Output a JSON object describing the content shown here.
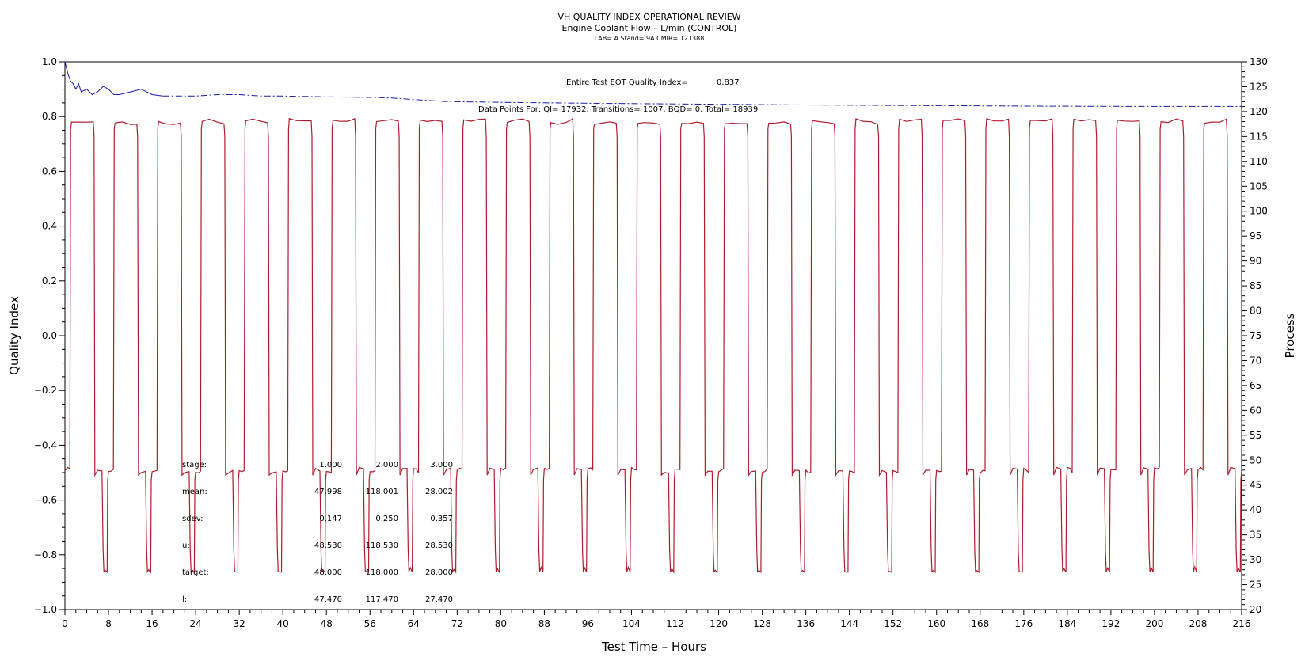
{
  "chart_data": {
    "type": "line",
    "title": "VH QUALITY INDEX OPERATIONAL REVIEW",
    "subtitle": "Engine Coolant Flow – L/min (CONTROL)",
    "subsubtitle": "LAB= A Stand= 9A CMIR= 121388",
    "xlabel": "Test Time – Hours",
    "ylabel": "Quality Index",
    "y2label": "Process",
    "xlim": [
      0,
      216
    ],
    "ylim": [
      -1.0,
      1.0
    ],
    "y2lim": [
      20,
      130
    ],
    "x_ticks": [
      0,
      8,
      16,
      24,
      32,
      40,
      48,
      56,
      64,
      72,
      80,
      88,
      96,
      104,
      112,
      120,
      128,
      136,
      144,
      152,
      160,
      168,
      176,
      184,
      192,
      200,
      208,
      216
    ],
    "y_ticks": [
      "1.0",
      "0.8",
      "0.6",
      "0.4",
      "0.2",
      "0.0",
      "−0.2",
      "−0.4",
      "−0.6",
      "−0.8",
      "−1.0"
    ],
    "y2_ticks": [
      130,
      125,
      120,
      115,
      110,
      105,
      100,
      95,
      90,
      85,
      80,
      75,
      70,
      65,
      60,
      55,
      50,
      45,
      40,
      35,
      30,
      25,
      20
    ],
    "annotations": {
      "eot_label": "Entire Test EOT Quality Index=",
      "eot_value": "0.837",
      "datapoints": "Data Points For: QI= 17932, Transitions= 1007, BQD= 0, Total= 18939"
    },
    "stats_table": {
      "rows": [
        {
          "label": "stage:",
          "values": [
            "1.000",
            "2.000",
            "3.000"
          ]
        },
        {
          "label": "mean:",
          "values": [
            "47.998",
            "118.001",
            "28.002"
          ]
        },
        {
          "label": "sdev:",
          "values": [
            "0.147",
            "0.250",
            "0.357"
          ]
        },
        {
          "label": "u:",
          "values": [
            "48.530",
            "118.530",
            "28.530"
          ]
        },
        {
          "label": "target:",
          "values": [
            "48.000",
            "118.000",
            "28.000"
          ]
        },
        {
          "label": "l:",
          "values": [
            "47.470",
            "117.470",
            "27.470"
          ]
        }
      ]
    },
    "series": [
      {
        "axis": "left",
        "color": "#1a1aa6",
        "style": "dash-dot after initial solid segment",
        "points": [
          [
            0,
            1.0
          ],
          [
            0.5,
            0.96
          ],
          [
            1,
            0.93
          ],
          [
            1.5,
            0.92
          ],
          [
            2,
            0.9
          ],
          [
            2.5,
            0.92
          ],
          [
            3,
            0.89
          ],
          [
            4,
            0.9
          ],
          [
            5,
            0.88
          ],
          [
            6,
            0.89
          ],
          [
            7,
            0.91
          ],
          [
            8,
            0.9
          ],
          [
            9,
            0.88
          ],
          [
            10,
            0.88
          ],
          [
            12,
            0.89
          ],
          [
            14,
            0.9
          ],
          [
            16,
            0.88
          ],
          [
            18,
            0.875
          ],
          [
            20,
            0.875
          ],
          [
            24,
            0.875
          ],
          [
            28,
            0.88
          ],
          [
            32,
            0.88
          ],
          [
            36,
            0.875
          ],
          [
            40,
            0.875
          ],
          [
            48,
            0.872
          ],
          [
            56,
            0.87
          ],
          [
            60,
            0.868
          ],
          [
            64,
            0.862
          ],
          [
            70,
            0.855
          ],
          [
            80,
            0.852
          ],
          [
            100,
            0.848
          ],
          [
            120,
            0.845
          ],
          [
            140,
            0.842
          ],
          [
            160,
            0.84
          ],
          [
            180,
            0.838
          ],
          [
            200,
            0.837
          ],
          [
            216,
            0.837
          ]
        ]
      },
      {
        "axis": "right",
        "color": "#b01c2e",
        "name": "",
        "cycle_hours": 8,
        "stage_levels": [
          48,
          118,
          28
        ],
        "stage_pattern": "48 → 118 (~4.2 h) → 48 (~2 h) → 28 (~1 h) → 48, repeated for 27 cycles from 0 to 216 h"
      }
    ],
    "colors": {
      "qi_line": "#1a1aa6",
      "process_line": "#b01c2e",
      "axis": "#000000"
    }
  }
}
